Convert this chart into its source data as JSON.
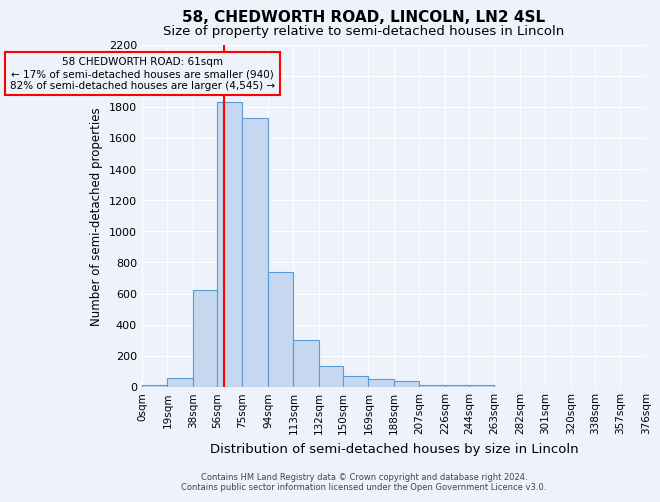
{
  "title": "58, CHEDWORTH ROAD, LINCOLN, LN2 4SL",
  "subtitle": "Size of property relative to semi-detached houses in Lincoln",
  "xlabel": "Distribution of semi-detached houses by size in Lincoln",
  "ylabel": "Number of semi-detached properties",
  "footnote1": "Contains HM Land Registry data © Crown copyright and database right 2024.",
  "footnote2": "Contains public sector information licensed under the Open Government Licence v3.0.",
  "bin_edges": [
    0,
    19,
    38,
    56,
    75,
    94,
    113,
    132,
    150,
    169,
    188,
    207,
    226,
    244,
    263,
    282,
    301,
    320,
    338,
    357,
    376
  ],
  "bin_labels": [
    "0sqm",
    "19sqm",
    "38sqm",
    "56sqm",
    "75sqm",
    "94sqm",
    "113sqm",
    "132sqm",
    "150sqm",
    "169sqm",
    "188sqm",
    "207sqm",
    "226sqm",
    "244sqm",
    "263sqm",
    "282sqm",
    "301sqm",
    "320sqm",
    "338sqm",
    "357sqm",
    "376sqm"
  ],
  "bar_heights": [
    15,
    60,
    620,
    1830,
    1730,
    740,
    305,
    135,
    70,
    50,
    40,
    15,
    15,
    15,
    0,
    0,
    0,
    0,
    0,
    0
  ],
  "bar_color": "#c5d8f0",
  "bar_edge_color": "#5b9bd5",
  "red_line_x": 61,
  "annotation_text_line1": "58 CHEDWORTH ROAD: 61sqm",
  "annotation_text_line2": "← 17% of semi-detached houses are smaller (940)",
  "annotation_text_line3": "82% of semi-detached houses are larger (4,545) →",
  "ylim": [
    0,
    2200
  ],
  "yticks": [
    0,
    200,
    400,
    600,
    800,
    1000,
    1200,
    1400,
    1600,
    1800,
    2000,
    2200
  ],
  "background_color": "#eef2fa",
  "grid_color": "#ffffff",
  "title_fontsize": 11,
  "subtitle_fontsize": 9.5
}
